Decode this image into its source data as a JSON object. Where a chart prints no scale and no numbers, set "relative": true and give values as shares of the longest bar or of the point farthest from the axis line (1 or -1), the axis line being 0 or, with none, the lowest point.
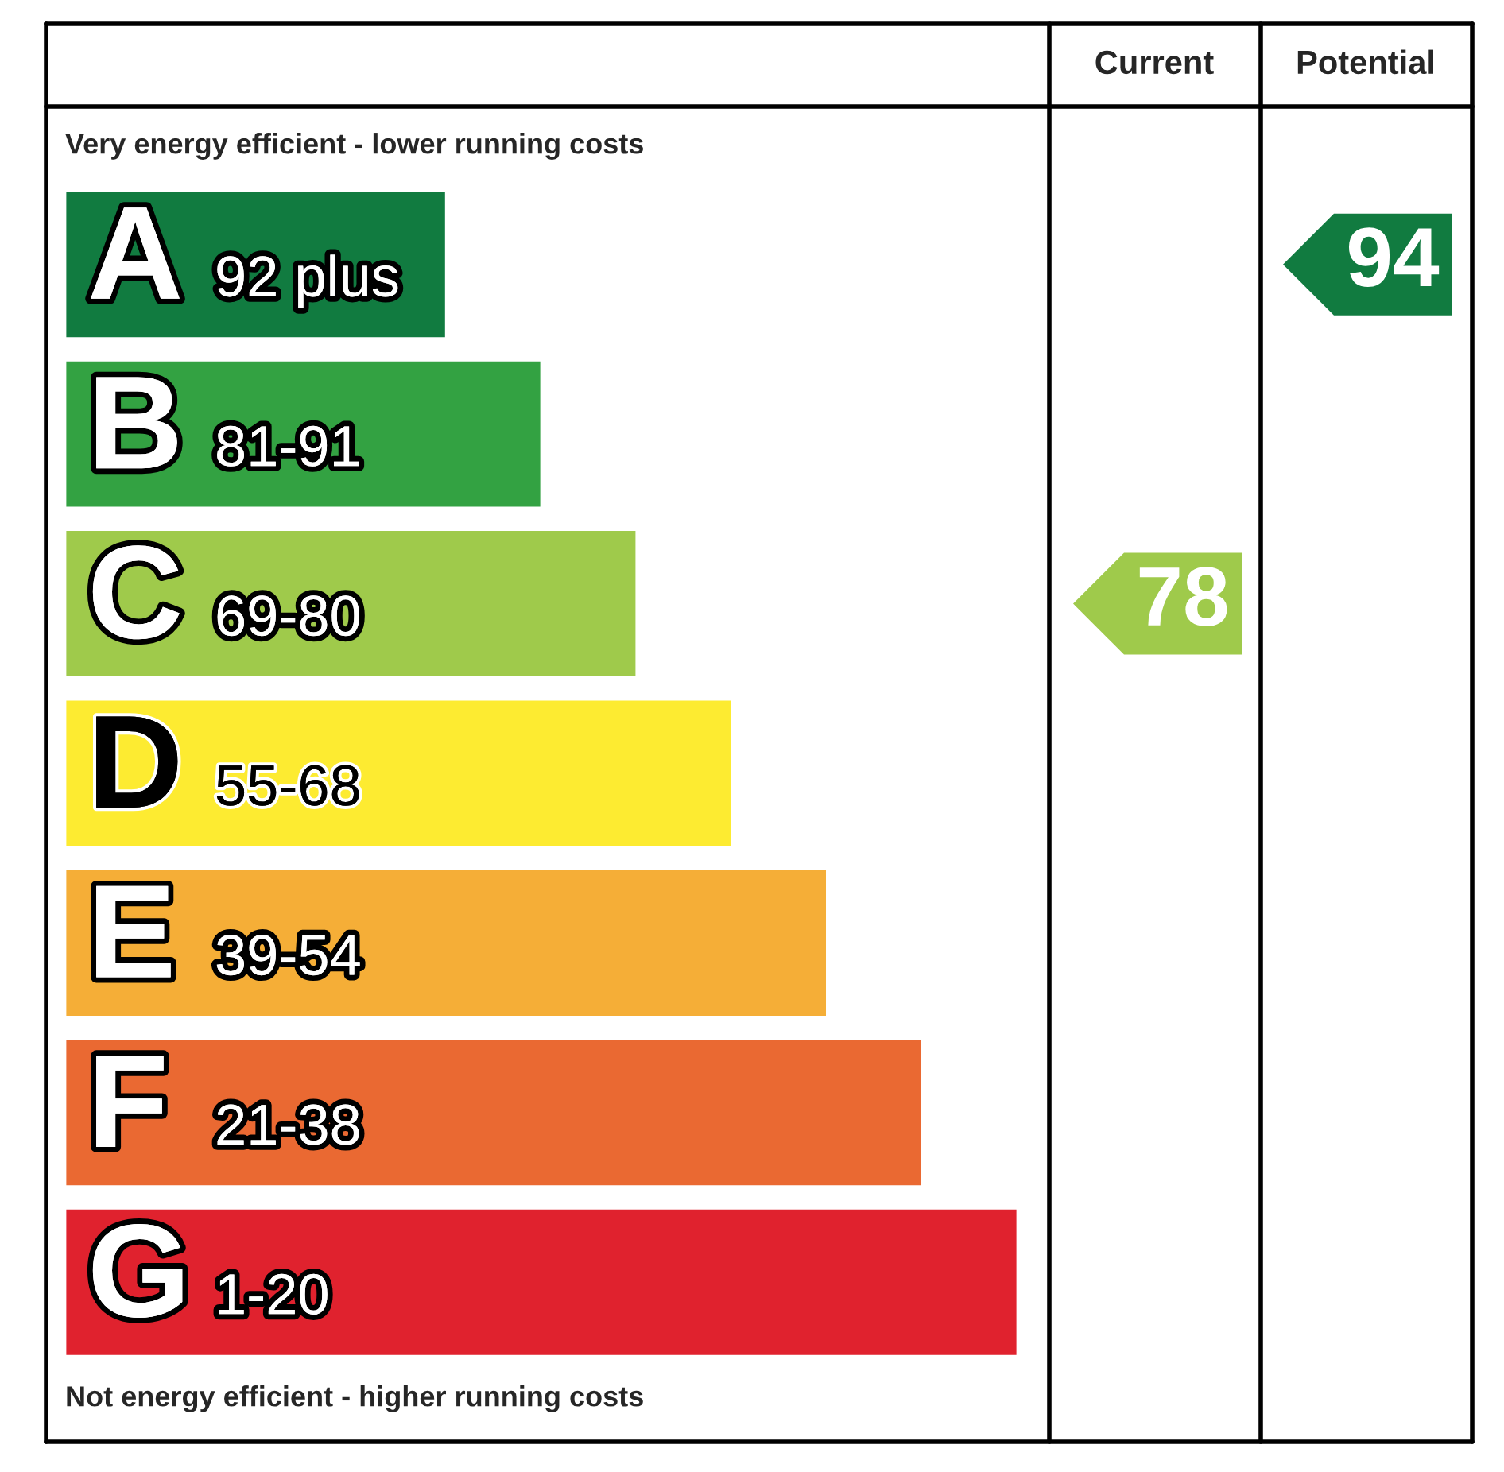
{
  "chart_data": {
    "type": "bar",
    "orientation": "horizontal",
    "relative": true,
    "categories": [
      "A",
      "B",
      "C",
      "D",
      "E",
      "F",
      "G"
    ],
    "values": [
      0.4,
      0.5,
      0.6,
      0.7,
      0.8,
      0.9,
      1.0
    ],
    "colors": [
      "#117b40",
      "#33a242",
      "#9fca4b",
      "#fdeb31",
      "#f5ae37",
      "#ea6932",
      "#e0222e"
    ],
    "annotations": [
      "Very energy efficient - lower running costs",
      "Not energy efficient - higher running costs",
      "Current",
      "Potential",
      "92 plus",
      "81-91",
      "69-80",
      "55-68",
      "39-54",
      "21-38",
      "1-20",
      "78",
      "94"
    ]
  }
}
